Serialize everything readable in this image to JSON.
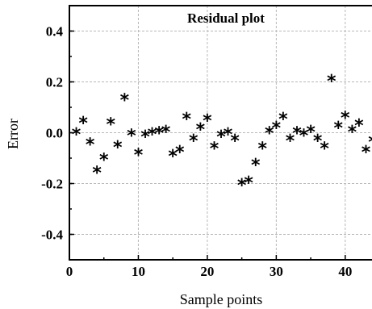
{
  "chart_data": {
    "type": "scatter",
    "title": "Residual plot",
    "xlabel": "Sample points",
    "ylabel": "Error",
    "xlim": [
      0,
      44
    ],
    "ylim": [
      -0.5,
      0.5
    ],
    "x_ticks": [
      0,
      10,
      20,
      30,
      40
    ],
    "y_ticks": [
      -0.4,
      -0.2,
      0.0,
      0.2,
      0.4
    ],
    "x_tick_labels": [
      "0",
      "10",
      "20",
      "30",
      "40"
    ],
    "y_tick_labels": [
      "-0.4",
      "-0.2",
      "0.0",
      "0.2",
      "0.4"
    ],
    "grid": true,
    "marker": "*",
    "color": "#000000",
    "points": [
      [
        1,
        -0.005
      ],
      [
        2,
        0.04
      ],
      [
        3,
        -0.045
      ],
      [
        4,
        -0.155
      ],
      [
        5,
        -0.105
      ],
      [
        6,
        0.035
      ],
      [
        7,
        -0.055
      ],
      [
        8,
        0.13
      ],
      [
        9,
        -0.01
      ],
      [
        10,
        -0.085
      ],
      [
        11,
        -0.015
      ],
      [
        12,
        -0.005
      ],
      [
        13,
        0.0
      ],
      [
        14,
        0.005
      ],
      [
        15,
        -0.09
      ],
      [
        16,
        -0.075
      ],
      [
        17,
        0.055
      ],
      [
        18,
        -0.03
      ],
      [
        19,
        0.015
      ],
      [
        20,
        0.05
      ],
      [
        21,
        -0.06
      ],
      [
        22,
        -0.015
      ],
      [
        23,
        -0.005
      ],
      [
        24,
        -0.03
      ],
      [
        25,
        -0.205
      ],
      [
        26,
        -0.195
      ],
      [
        27,
        -0.125
      ],
      [
        28,
        -0.06
      ],
      [
        29,
        0.0
      ],
      [
        30,
        0.02
      ],
      [
        31,
        0.055
      ],
      [
        32,
        -0.03
      ],
      [
        33,
        0.0
      ],
      [
        34,
        -0.01
      ],
      [
        35,
        0.005
      ],
      [
        36,
        -0.03
      ],
      [
        37,
        -0.06
      ],
      [
        38,
        0.205
      ],
      [
        39,
        0.02
      ],
      [
        40,
        0.06
      ],
      [
        41,
        0.005
      ],
      [
        42,
        0.03
      ],
      [
        43,
        -0.075
      ],
      [
        44,
        -0.035
      ]
    ]
  }
}
